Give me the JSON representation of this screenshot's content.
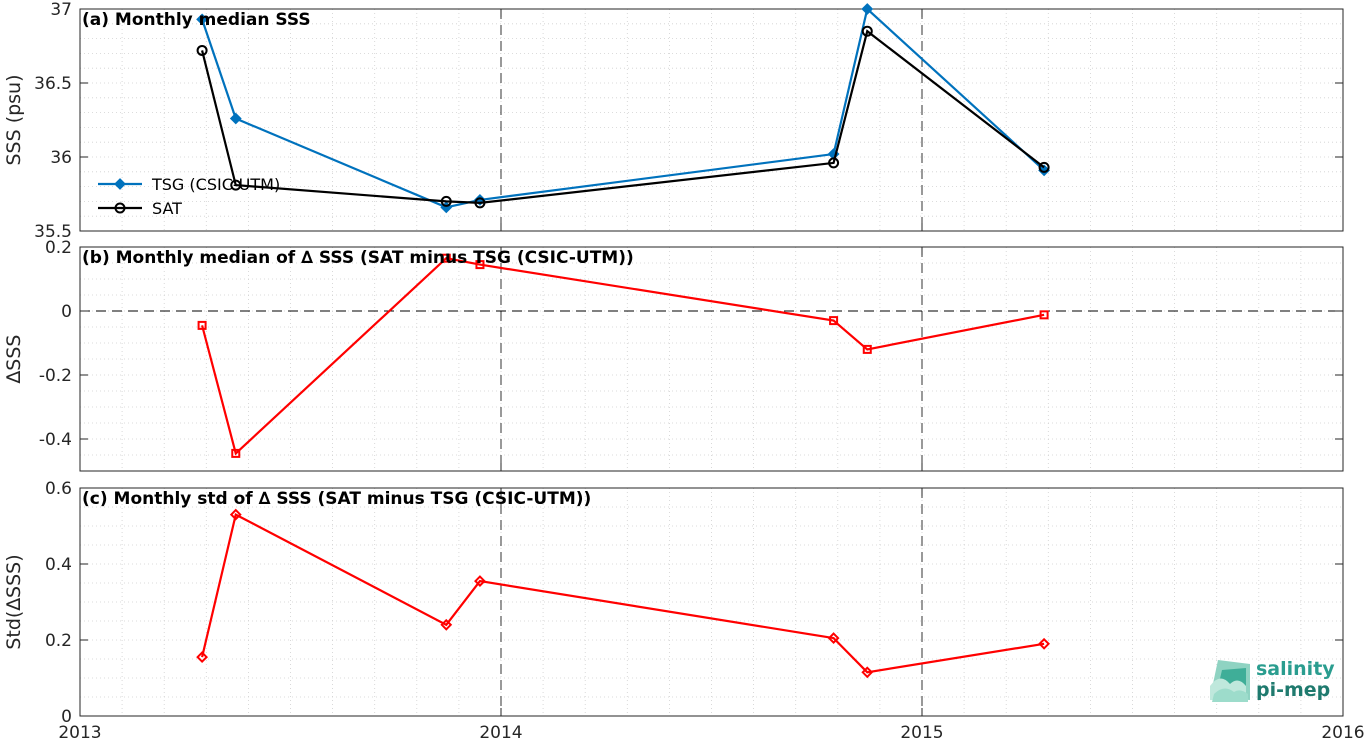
{
  "colors": {
    "tsg": "#0072bd",
    "sat": "#000000",
    "delta": "#ff0000",
    "axis": "#262626"
  },
  "chart_data": [
    {
      "type": "line",
      "title": "(a) Monthly median SSS",
      "ylabel": "SSS (psu)",
      "xlim": [
        2013,
        2016
      ],
      "ylim": [
        35.5,
        37
      ],
      "yticks": [
        35.5,
        36,
        36.5,
        37
      ],
      "ytick_labels": [
        "35.5",
        "36",
        "36.5",
        "37"
      ],
      "grid": true,
      "legend": "middle-left",
      "series": [
        {
          "name": "TSG (CSIC-UTM)",
          "marker": "diamond",
          "color": "#0072bd",
          "x": [
            2013.29,
            2013.37,
            2013.87,
            2013.95,
            2014.79,
            2014.87,
            2015.29
          ],
          "y": [
            36.93,
            36.26,
            35.66,
            35.71,
            36.02,
            37.0,
            35.91
          ]
        },
        {
          "name": "SAT",
          "marker": "circle",
          "color": "#000000",
          "x": [
            2013.29,
            2013.37,
            2013.87,
            2013.95,
            2014.79,
            2014.87,
            2015.29
          ],
          "y": [
            36.72,
            35.81,
            35.7,
            35.69,
            35.96,
            36.85,
            35.93
          ]
        }
      ]
    },
    {
      "type": "line",
      "title": "(b) Monthly median of ∆ SSS (SAT minus TSG (CSIC-UTM))",
      "ylabel": "∆SSS",
      "xlim": [
        2013,
        2016
      ],
      "ylim": [
        -0.5,
        0.2
      ],
      "yticks": [
        -0.4,
        -0.2,
        0,
        0.2
      ],
      "ytick_labels": [
        "-0.4",
        "-0.2",
        "0",
        "0.2"
      ],
      "zero_line": true,
      "grid": true,
      "series": [
        {
          "marker": "square",
          "color": "#ff0000",
          "x": [
            2013.29,
            2013.37,
            2013.87,
            2013.95,
            2014.79,
            2014.87,
            2015.29
          ],
          "y": [
            -0.045,
            -0.445,
            0.165,
            0.145,
            -0.03,
            -0.12,
            -0.012
          ]
        }
      ]
    },
    {
      "type": "line",
      "title": "(c) Monthly std of ∆ SSS (SAT minus TSG (CSIC-UTM))",
      "ylabel": "Std(∆SSS)",
      "xlim": [
        2013,
        2016
      ],
      "ylim": [
        0,
        0.6
      ],
      "yticks": [
        0,
        0.2,
        0.4,
        0.6
      ],
      "ytick_labels": [
        "0",
        "0.2",
        "0.4",
        "0.6"
      ],
      "xticks": [
        2013,
        2014,
        2015,
        2016
      ],
      "xtick_labels": [
        "2013",
        "2014",
        "2015",
        "2016"
      ],
      "grid": true,
      "series": [
        {
          "marker": "diamond",
          "color": "#ff0000",
          "x": [
            2013.29,
            2013.37,
            2013.87,
            2013.95,
            2014.79,
            2014.87,
            2015.29
          ],
          "y": [
            0.155,
            0.53,
            0.24,
            0.355,
            0.205,
            0.115,
            0.19
          ]
        }
      ]
    }
  ],
  "logo": {
    "line1": "salinity",
    "line2": "pi-mep"
  }
}
